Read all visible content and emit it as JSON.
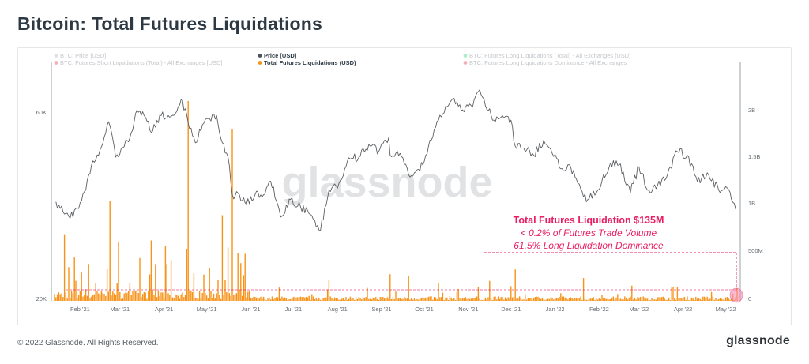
{
  "page": {
    "title": "Bitcoin: Total Futures Liquidations",
    "copyright": "© 2022 Glassnode. All Rights Reserved.",
    "brand": "glassnode",
    "watermark": "glassnode"
  },
  "chart_data": {
    "type": "line+bar",
    "x_ticks": [
      "Feb '21",
      "Mar '21",
      "Apr '21",
      "May '21",
      "Jun '21",
      "Jul '21",
      "Aug '21",
      "Sep '21",
      "Oct '21",
      "Nov '21",
      "Dec '21",
      "Jan '22",
      "Feb '22",
      "Mar '22",
      "Apr '22",
      "May '22"
    ],
    "y_left_ticks": [
      "60K",
      "20K"
    ],
    "y_right_ticks": [
      "2B",
      "1.5B",
      "1B",
      "500M",
      "0"
    ],
    "y_left_scale": "log",
    "y_left_range": [
      20000,
      70000
    ],
    "y_right_range": [
      0,
      2400000000
    ],
    "grid": false,
    "legend_position": "top",
    "legend": [
      {
        "label": "BTC: Price [USD]",
        "color": "#b8bcc2",
        "active": false
      },
      {
        "label": "Price [USD]",
        "color": "#4a5560",
        "active": true
      },
      {
        "label": "BTC: Futures Long Liquidations (Total) - All Exchanges [USD]",
        "color": "#4fd68a",
        "active": false
      },
      {
        "label": "BTC: Futures Short Liquidations (Total) - All Exchanges [USD]",
        "color": "#e84c5c",
        "active": false
      },
      {
        "label": "Total Futures Liquidations (USD)",
        "color": "#f7931a",
        "active": true
      },
      {
        "label": "BTC: Futures Long Liquidations Dominance - All Exchanges",
        "color": "#e84c5c",
        "active": false
      }
    ],
    "series": [
      {
        "name": "Price [USD]",
        "color": "#5b5f63",
        "points": [
          [
            "2021-01-15",
            35500
          ],
          [
            "2021-01-20",
            33500
          ],
          [
            "2021-01-25",
            32300
          ],
          [
            "2021-01-30",
            34300
          ],
          [
            "2021-02-05",
            38000
          ],
          [
            "2021-02-10",
            45000
          ],
          [
            "2021-02-15",
            48000
          ],
          [
            "2021-02-21",
            56500
          ],
          [
            "2021-02-26",
            46000
          ],
          [
            "2021-03-02",
            48500
          ],
          [
            "2021-03-08",
            51500
          ],
          [
            "2021-03-13",
            60500
          ],
          [
            "2021-03-18",
            58500
          ],
          [
            "2021-03-24",
            53500
          ],
          [
            "2021-03-30",
            58500
          ],
          [
            "2021-04-05",
            58000
          ],
          [
            "2021-04-10",
            60000
          ],
          [
            "2021-04-14",
            64000
          ],
          [
            "2021-04-18",
            56000
          ],
          [
            "2021-04-23",
            50000
          ],
          [
            "2021-04-28",
            55500
          ],
          [
            "2021-05-03",
            57500
          ],
          [
            "2021-05-08",
            58500
          ],
          [
            "2021-05-12",
            50000
          ],
          [
            "2021-05-16",
            46000
          ],
          [
            "2021-05-19",
            37000
          ],
          [
            "2021-05-24",
            37000
          ],
          [
            "2021-05-29",
            35000
          ],
          [
            "2021-06-04",
            37000
          ],
          [
            "2021-06-10",
            37000
          ],
          [
            "2021-06-15",
            40000
          ],
          [
            "2021-06-22",
            32500
          ],
          [
            "2021-06-29",
            36000
          ],
          [
            "2021-07-06",
            34500
          ],
          [
            "2021-07-13",
            33000
          ],
          [
            "2021-07-20",
            30000
          ],
          [
            "2021-07-26",
            38000
          ],
          [
            "2021-08-02",
            39500
          ],
          [
            "2021-08-10",
            45500
          ],
          [
            "2021-08-16",
            46000
          ],
          [
            "2021-08-23",
            49500
          ],
          [
            "2021-08-30",
            47500
          ],
          [
            "2021-09-06",
            51500
          ],
          [
            "2021-09-07",
            46500
          ],
          [
            "2021-09-14",
            47000
          ],
          [
            "2021-09-21",
            41000
          ],
          [
            "2021-09-28",
            42500
          ],
          [
            "2021-10-04",
            49000
          ],
          [
            "2021-10-11",
            57000
          ],
          [
            "2021-10-18",
            62000
          ],
          [
            "2021-10-21",
            64500
          ],
          [
            "2021-10-28",
            60500
          ],
          [
            "2021-11-04",
            61500
          ],
          [
            "2021-11-09",
            68000
          ],
          [
            "2021-11-12",
            64500
          ],
          [
            "2021-11-18",
            57000
          ],
          [
            "2021-11-25",
            58500
          ],
          [
            "2021-12-01",
            57000
          ],
          [
            "2021-12-04",
            49000
          ],
          [
            "2021-12-10",
            48500
          ],
          [
            "2021-12-17",
            46500
          ],
          [
            "2021-12-24",
            50800
          ],
          [
            "2021-12-30",
            47000
          ],
          [
            "2022-01-05",
            43000
          ],
          [
            "2022-01-12",
            43500
          ],
          [
            "2022-01-21",
            36500
          ],
          [
            "2022-01-24",
            36000
          ],
          [
            "2022-01-31",
            38000
          ],
          [
            "2022-02-09",
            44500
          ],
          [
            "2022-02-15",
            44000
          ],
          [
            "2022-02-23",
            37500
          ],
          [
            "2022-03-01",
            43500
          ],
          [
            "2022-03-07",
            38000
          ],
          [
            "2022-03-14",
            39000
          ],
          [
            "2022-03-21",
            41500
          ],
          [
            "2022-03-28",
            47500
          ],
          [
            "2022-04-04",
            46500
          ],
          [
            "2022-04-11",
            40000
          ],
          [
            "2022-04-19",
            41500
          ],
          [
            "2022-04-26",
            38000
          ],
          [
            "2022-05-02",
            38500
          ],
          [
            "2022-05-05",
            36000
          ],
          [
            "2022-05-08",
            34000
          ]
        ]
      },
      {
        "name": "Total Futures Liquidations (USD)",
        "color": "#f7931a",
        "spikes": [
          [
            "2021-01-21",
            700000000
          ],
          [
            "2021-02-22",
            1050000000
          ],
          [
            "2021-03-15",
            450000000
          ],
          [
            "2021-04-18",
            2100000000
          ],
          [
            "2021-05-12",
            900000000
          ],
          [
            "2021-05-19",
            1800000000
          ],
          [
            "2021-06-21",
            140000000
          ],
          [
            "2021-07-26",
            220000000
          ],
          [
            "2021-09-07",
            280000000
          ],
          [
            "2021-09-20",
            260000000
          ],
          [
            "2021-10-11",
            190000000
          ],
          [
            "2021-11-16",
            210000000
          ],
          [
            "2021-12-04",
            330000000
          ],
          [
            "2022-01-21",
            240000000
          ],
          [
            "2022-02-24",
            160000000
          ],
          [
            "2022-03-28",
            150000000
          ],
          [
            "2022-05-09",
            135000000
          ]
        ]
      }
    ],
    "annotation": {
      "headline": "Total Futures Liquidation $135M",
      "line2": "< 0.2% of Futures Trade Volume",
      "line3": "61.5% Long Liquidation Dominance",
      "color": "#e91e63"
    }
  }
}
